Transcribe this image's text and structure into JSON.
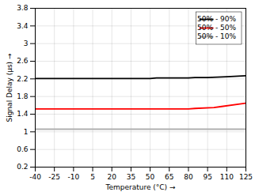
{
  "chart_data": {
    "type": "line",
    "xlabel": "Temperature (°C)",
    "ylabel": "Signal Delay (μs)",
    "xlim": [
      -40,
      125
    ],
    "ylim": [
      0.2,
      3.8
    ],
    "xticks": [
      -40,
      -25,
      -10,
      5,
      20,
      35,
      50,
      65,
      80,
      95,
      110,
      125
    ],
    "yticks": [
      0.2,
      0.6,
      1,
      1.4,
      1.8,
      2.2,
      2.6,
      3,
      3.4,
      3.8
    ],
    "series": [
      {
        "name": "50% - 90%",
        "color": "#000000",
        "x": [
          -40,
          50,
          55,
          80,
          85,
          95,
          110,
          125
        ],
        "values": [
          2.21,
          2.21,
          2.22,
          2.22,
          2.23,
          2.23,
          2.25,
          2.27
        ]
      },
      {
        "name": "50% - 50%",
        "color": "#ff0000",
        "x": [
          -40,
          80,
          85,
          100,
          105,
          125
        ],
        "values": [
          1.52,
          1.52,
          1.53,
          1.55,
          1.57,
          1.65
        ]
      },
      {
        "name": "50% - 10%",
        "color": "#b0b0b0",
        "x": [
          -40,
          125
        ],
        "values": [
          1.06,
          1.06
        ]
      }
    ],
    "grid": true,
    "legend": "upper right"
  }
}
